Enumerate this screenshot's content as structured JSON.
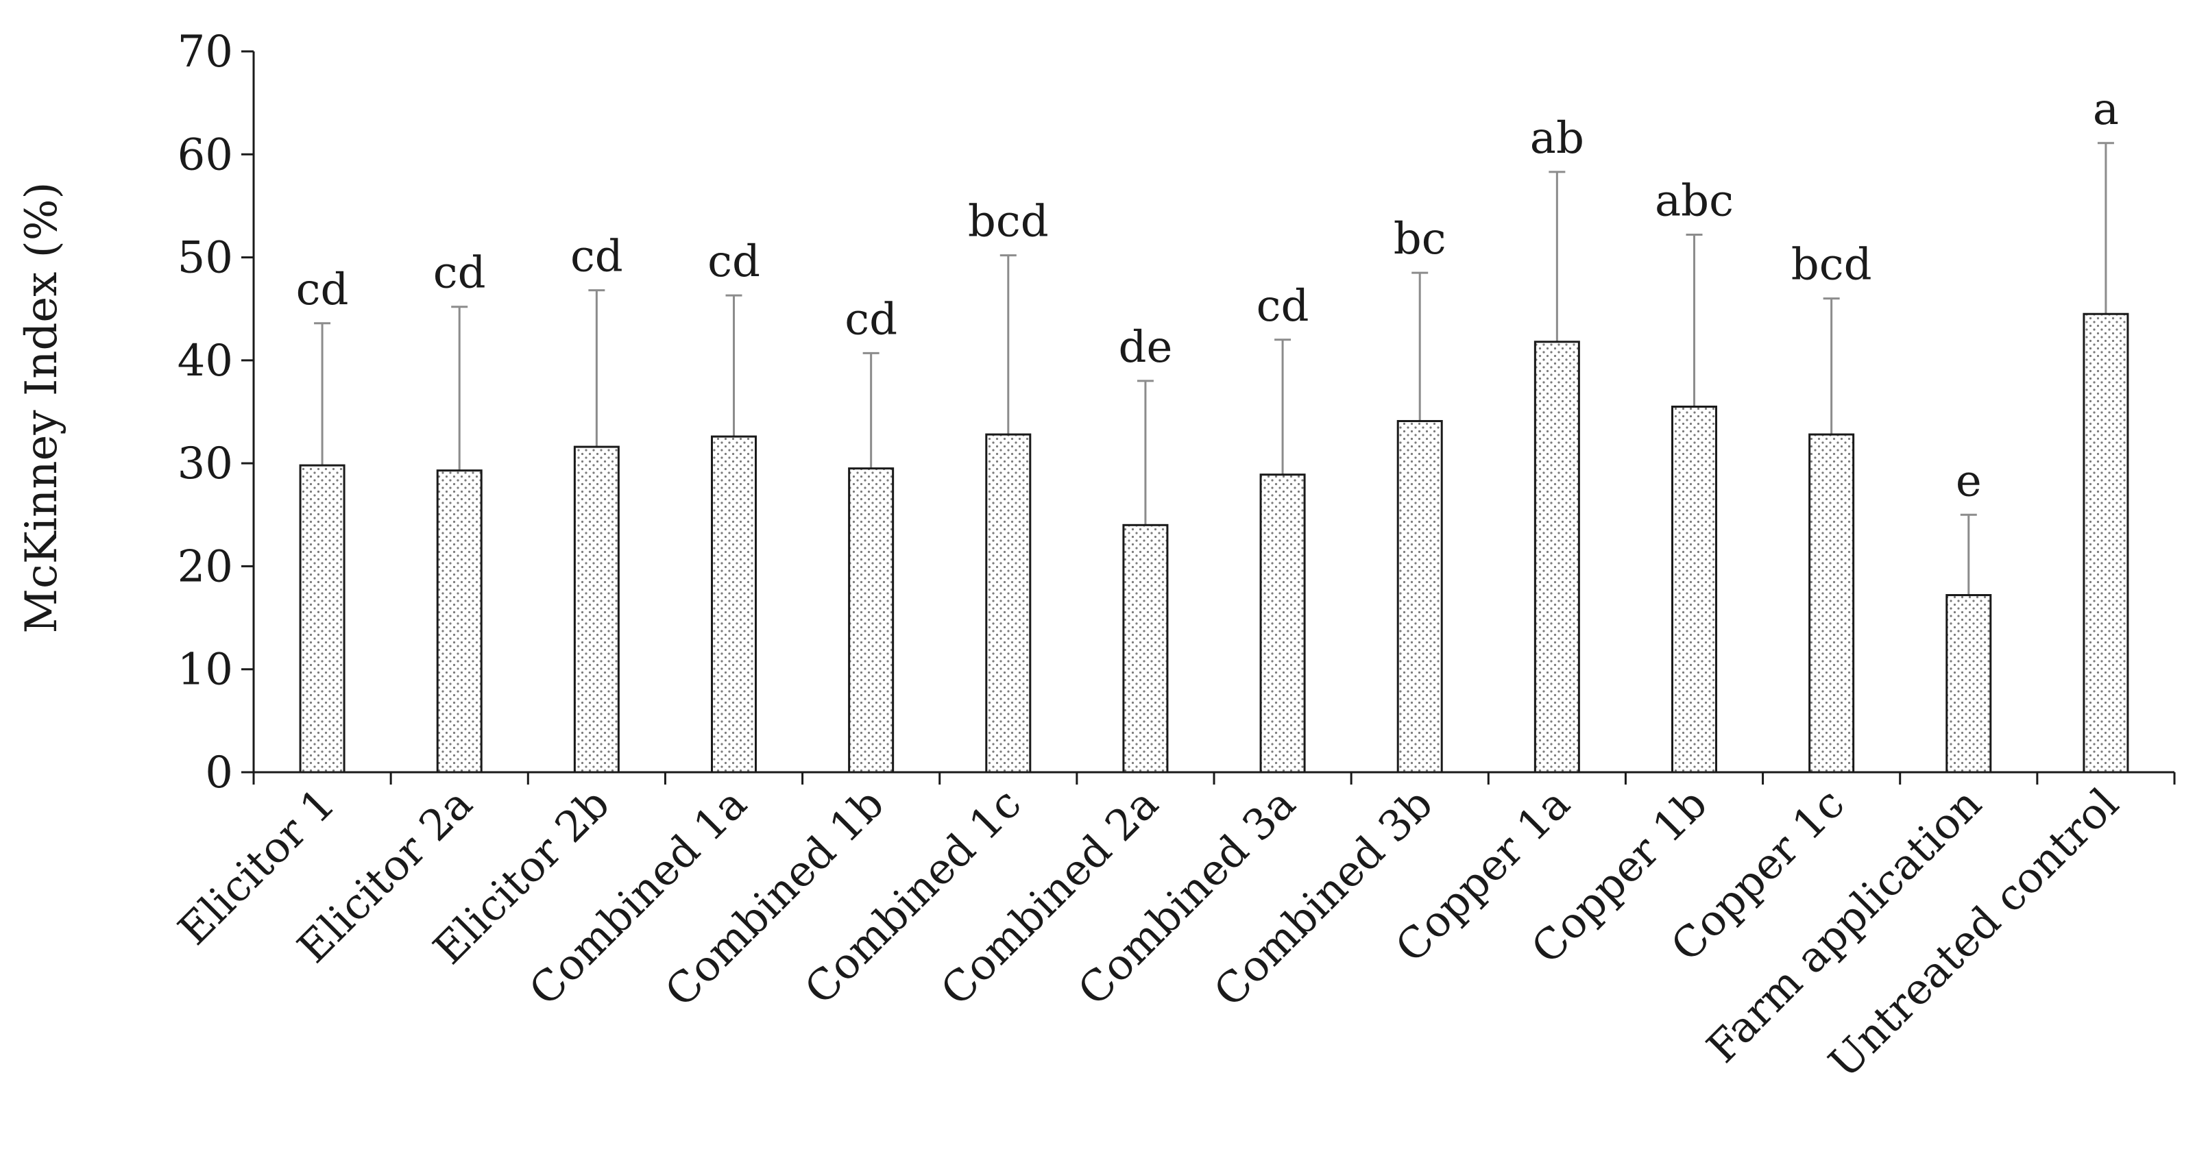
{
  "chart_data": {
    "type": "bar",
    "title": "",
    "xlabel": "",
    "ylabel": "McKinney Index (%)",
    "ylim": [
      0,
      70
    ],
    "yticks": [
      0,
      10,
      20,
      30,
      40,
      50,
      60,
      70
    ],
    "grid": false,
    "legend": "none",
    "categories": [
      "Elicitor 1",
      "Elicitor 2a",
      "Elicitor 2b",
      "Combined 1a",
      "Combined 1b",
      "Combined 1c",
      "Combined 2a",
      "Combined 3a",
      "Combined 3b",
      "Copper 1a",
      "Copper 1b",
      "Copper 1c",
      "Farm application",
      "Untreated control"
    ],
    "values": [
      29.8,
      29.3,
      31.6,
      32.6,
      29.5,
      32.8,
      24.0,
      28.9,
      34.1,
      41.8,
      35.5,
      32.8,
      17.2,
      44.5
    ],
    "error_upper": [
      43.6,
      45.2,
      46.8,
      46.3,
      40.7,
      50.2,
      38.0,
      42.0,
      48.5,
      58.3,
      52.2,
      46.0,
      25.0,
      61.1
    ],
    "significance_letters": [
      "cd",
      "cd",
      "cd",
      "cd",
      "cd",
      "bcd",
      "de",
      "cd",
      "bc",
      "ab",
      "abc",
      "bcd",
      "e",
      "a"
    ],
    "bar_pattern": "dotted",
    "colors": {
      "axis": "#1a1a1a",
      "bar_edge": "#1a1a1a",
      "bar_fill": "#ffffff",
      "dots": "#7a7a7a",
      "error_bar": "#8c8c8c"
    }
  }
}
